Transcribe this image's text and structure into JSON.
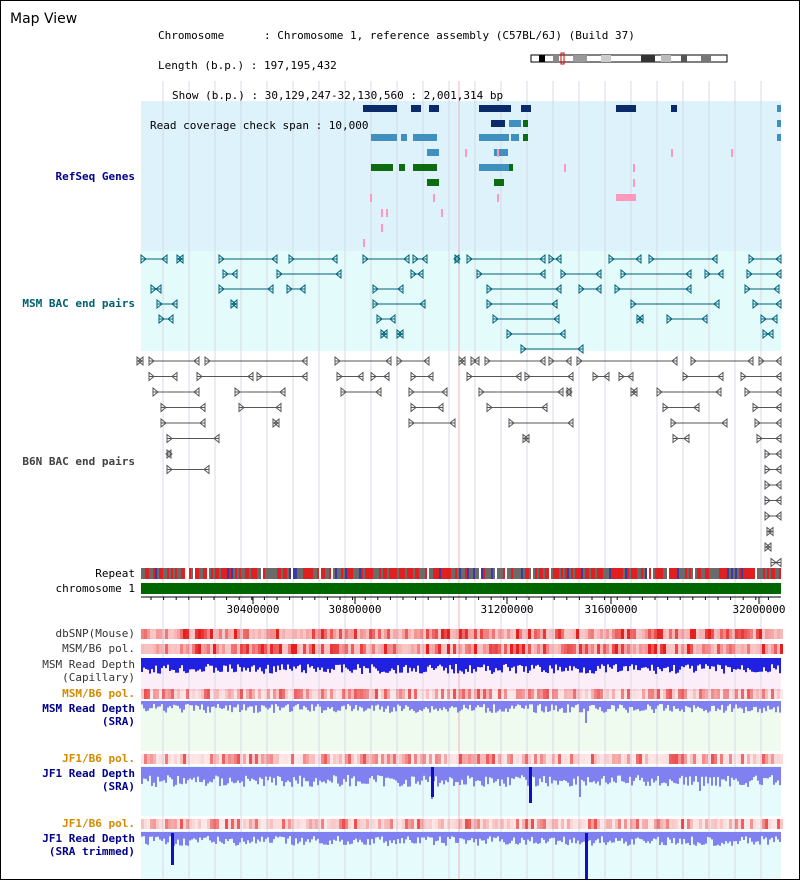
{
  "header": {
    "title": "Map View",
    "chromosome_line": "Chromosome      : Chromosome 1, reference assembly (C57BL/6J) (Build 37)",
    "length_line": "Length (b.p.) : 197,195,432",
    "show_line": "Show (b.p.) : 30,129,247-32,130,560 : 2,001,314 bp",
    "span_line": "Read coverage check span : 10,000"
  },
  "tracks": {
    "refseq": "RefSeq Genes",
    "msm_bac": "MSM BAC end pairs",
    "b6n_bac": "B6N BAC end pairs",
    "repeat": "Repeat",
    "chromosome": "chromosome 1",
    "dbsnp": "dbSNP(Mouse)",
    "msm_b6_pol_1": "MSM/B6 pol.",
    "msm_read_depth_cap_1": "MSM Read Depth",
    "msm_read_depth_cap_2": "(Capillary)",
    "msm_b6_pol_2": "MSM/B6 pol.",
    "msm_read_depth_sra_1": "MSM Read Depth",
    "msm_read_depth_sra_2": "(SRA)",
    "jf1_b6_pol_1": "JF1/B6 pol.",
    "jf1_read_depth_sra_1": "JF1 Read Depth",
    "jf1_read_depth_sra_2": "(SRA)",
    "jf1_b6_pol_2": "JF1/B6 pol.",
    "jf1_read_depth_trim_1": "JF1 Read Depth",
    "jf1_read_depth_trim_2": "(SRA trimmed)"
  },
  "axis": {
    "ticks": [
      "30400000",
      "30800000",
      "31200000",
      "31600000",
      "32000000"
    ]
  },
  "colors": {
    "refseq_bg": "#ddf2fb",
    "msm_bg": "#e3fbfb",
    "gene_dark": "#0a2a6a",
    "gene_mid": "#3f8fbf",
    "gene_green": "#0d6b10",
    "gene_pink": "#ff99bb",
    "msm_line": "#00607a",
    "b6n_line": "#555555",
    "repeat_red": "#e02020",
    "repeat_gray": "#6b6b6b",
    "chrom_green": "#006600",
    "depth_blue": "#2020e0",
    "depth_light": "#8080f0"
  }
}
